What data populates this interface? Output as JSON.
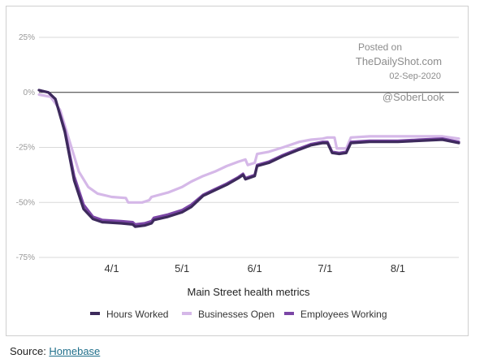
{
  "chart_data": {
    "type": "line",
    "title": "",
    "xlabel": "Main Street health metrics",
    "ylabel": "",
    "ylim": [
      -75,
      25
    ],
    "xlim": [
      "2020-03-01",
      "2020-08-27"
    ],
    "y_ticks": [
      "25%",
      "0%",
      "-25%",
      "-50%",
      "-75%"
    ],
    "y_tick_values": [
      25,
      0,
      -25,
      -50,
      -75
    ],
    "x_ticks": [
      "4/1",
      "5/1",
      "6/1",
      "7/1",
      "8/1"
    ],
    "x_tick_dates": [
      "2020-04-01",
      "2020-05-01",
      "2020-06-01",
      "2020-07-01",
      "2020-08-01"
    ],
    "grid": true,
    "legend_position": "bottom",
    "series": [
      {
        "name": "Hours Worked",
        "color": "#3d2a5c",
        "points": [
          [
            "2020-03-01",
            1
          ],
          [
            "2020-03-05",
            0
          ],
          [
            "2020-03-08",
            -3
          ],
          [
            "2020-03-12",
            -18
          ],
          [
            "2020-03-16",
            -40
          ],
          [
            "2020-03-20",
            -53
          ],
          [
            "2020-03-24",
            -57.5
          ],
          [
            "2020-03-28",
            -59
          ],
          [
            "2020-04-05",
            -59.5
          ],
          [
            "2020-04-10",
            -60
          ],
          [
            "2020-04-11",
            -61
          ],
          [
            "2020-04-15",
            -60.5
          ],
          [
            "2020-04-18",
            -59.5
          ],
          [
            "2020-04-19",
            -58
          ],
          [
            "2020-04-25",
            -56.5
          ],
          [
            "2020-05-01",
            -54.5
          ],
          [
            "2020-05-05",
            -52
          ],
          [
            "2020-05-10",
            -47
          ],
          [
            "2020-05-15",
            -44.5
          ],
          [
            "2020-05-20",
            -42
          ],
          [
            "2020-05-25",
            -39
          ],
          [
            "2020-05-27",
            -37.5
          ],
          [
            "2020-05-28",
            -39.5
          ],
          [
            "2020-06-01",
            -38
          ],
          [
            "2020-06-02",
            -33.5
          ],
          [
            "2020-06-07",
            -32
          ],
          [
            "2020-06-13",
            -29
          ],
          [
            "2020-06-20",
            -26
          ],
          [
            "2020-06-25",
            -24
          ],
          [
            "2020-06-30",
            -23
          ],
          [
            "2020-07-02",
            -23
          ],
          [
            "2020-07-04",
            -27.5
          ],
          [
            "2020-07-07",
            -28
          ],
          [
            "2020-07-10",
            -27.5
          ],
          [
            "2020-07-12",
            -23
          ],
          [
            "2020-07-20",
            -22.5
          ],
          [
            "2020-08-01",
            -22.5
          ],
          [
            "2020-08-10",
            -22
          ],
          [
            "2020-08-20",
            -21.5
          ],
          [
            "2020-08-27",
            -23
          ]
        ]
      },
      {
        "name": "Businesses Open",
        "color": "#d5b8e8",
        "points": [
          [
            "2020-03-01",
            -1
          ],
          [
            "2020-03-06",
            -2
          ],
          [
            "2020-03-10",
            -8
          ],
          [
            "2020-03-14",
            -22
          ],
          [
            "2020-03-18",
            -36
          ],
          [
            "2020-03-22",
            -43
          ],
          [
            "2020-03-26",
            -46
          ],
          [
            "2020-04-01",
            -47.5
          ],
          [
            "2020-04-07",
            -48
          ],
          [
            "2020-04-08",
            -50
          ],
          [
            "2020-04-14",
            -50
          ],
          [
            "2020-04-17",
            -49
          ],
          [
            "2020-04-18",
            -47.5
          ],
          [
            "2020-04-25",
            -45.5
          ],
          [
            "2020-05-01",
            -43
          ],
          [
            "2020-05-05",
            -40.5
          ],
          [
            "2020-05-10",
            -38
          ],
          [
            "2020-05-15",
            -36
          ],
          [
            "2020-05-20",
            -33.5
          ],
          [
            "2020-05-25",
            -31.5
          ],
          [
            "2020-05-28",
            -30.5
          ],
          [
            "2020-05-29",
            -33
          ],
          [
            "2020-06-01",
            -32
          ],
          [
            "2020-06-02",
            -28
          ],
          [
            "2020-06-07",
            -27
          ],
          [
            "2020-06-13",
            -25
          ],
          [
            "2020-06-20",
            -22.5
          ],
          [
            "2020-06-25",
            -21.5
          ],
          [
            "2020-06-30",
            -21
          ],
          [
            "2020-07-02",
            -20.5
          ],
          [
            "2020-07-05",
            -20.5
          ],
          [
            "2020-07-06",
            -25.5
          ],
          [
            "2020-07-10",
            -25.5
          ],
          [
            "2020-07-12",
            -20.5
          ],
          [
            "2020-07-20",
            -20
          ],
          [
            "2020-08-01",
            -20
          ],
          [
            "2020-08-10",
            -20
          ],
          [
            "2020-08-20",
            -20
          ],
          [
            "2020-08-27",
            -21
          ]
        ]
      },
      {
        "name": "Employees Working",
        "color": "#7b46a6",
        "points": [
          [
            "2020-03-01",
            1
          ],
          [
            "2020-03-05",
            0
          ],
          [
            "2020-03-08",
            -3
          ],
          [
            "2020-03-12",
            -17
          ],
          [
            "2020-03-16",
            -38
          ],
          [
            "2020-03-20",
            -51
          ],
          [
            "2020-03-24",
            -56.5
          ],
          [
            "2020-03-28",
            -58
          ],
          [
            "2020-04-05",
            -58.5
          ],
          [
            "2020-04-10",
            -59
          ],
          [
            "2020-04-11",
            -60
          ],
          [
            "2020-04-15",
            -59.5
          ],
          [
            "2020-04-18",
            -58.5
          ],
          [
            "2020-04-19",
            -57
          ],
          [
            "2020-04-25",
            -55.5
          ],
          [
            "2020-05-01",
            -53.5
          ],
          [
            "2020-05-05",
            -51
          ],
          [
            "2020-05-10",
            -46.5
          ],
          [
            "2020-05-15",
            -44
          ],
          [
            "2020-05-20",
            -41.5
          ],
          [
            "2020-05-25",
            -38.5
          ],
          [
            "2020-05-27",
            -37
          ],
          [
            "2020-05-28",
            -39
          ],
          [
            "2020-06-01",
            -37.5
          ],
          [
            "2020-06-02",
            -33
          ],
          [
            "2020-06-07",
            -31.5
          ],
          [
            "2020-06-13",
            -28.5
          ],
          [
            "2020-06-20",
            -25.5
          ],
          [
            "2020-06-25",
            -23.5
          ],
          [
            "2020-06-30",
            -22.5
          ],
          [
            "2020-07-02",
            -22.5
          ],
          [
            "2020-07-04",
            -27
          ],
          [
            "2020-07-07",
            -27.5
          ],
          [
            "2020-07-10",
            -27
          ],
          [
            "2020-07-12",
            -22.5
          ],
          [
            "2020-07-20",
            -22
          ],
          [
            "2020-08-01",
            -22
          ],
          [
            "2020-08-10",
            -21.5
          ],
          [
            "2020-08-20",
            -21
          ],
          [
            "2020-08-27",
            -22.5
          ]
        ]
      }
    ]
  },
  "watermark": {
    "line1": "Posted on",
    "line2": "TheDailyShot.com",
    "line3": "02-Sep-2020",
    "handle": "@SoberLook"
  },
  "source": {
    "prefix": "Source: ",
    "link_text": "Homebase"
  },
  "colors": {
    "grid": "#d9d9d9",
    "zero_line": "#333333"
  }
}
